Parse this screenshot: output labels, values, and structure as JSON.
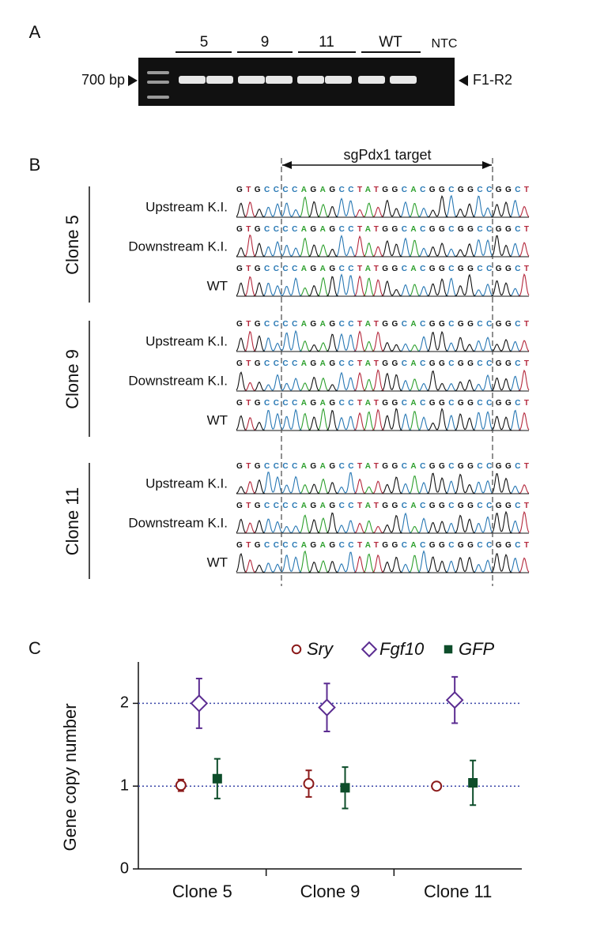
{
  "panel_labels": [
    "A",
    "B",
    "C"
  ],
  "gel": {
    "lane_groups": [
      "5",
      "9",
      "11",
      "WT"
    ],
    "ntc": "NTC",
    "marker": "700 bp",
    "product": "F1-R2"
  },
  "sequencing": {
    "target": "sgPdx1 target",
    "clones": [
      {
        "name": "Clone 5",
        "rows": [
          {
            "label": "Upstream K.I.",
            "sequence": "GTGCCCCAGAGCCTATGGCACGGCGGCCGGCT"
          },
          {
            "label": "Downstream K.I.",
            "sequence": "GTGCCCCAGAGCCTATGGCACGGCGGCCGGCT"
          },
          {
            "label": "WT",
            "sequence": "GTGCCCCAGAGCCTATGGCACGGCGGCCGGCT"
          }
        ]
      },
      {
        "name": "Clone 9",
        "rows": [
          {
            "label": "Upstream K.I.",
            "sequence": "GTGCCCCAGAGCCTATGGCACGGCGGCCGGCT"
          },
          {
            "label": "Downstream K.I.",
            "sequence": "GTGCCCCAGAGCCTATGGCACGGCGGCCGGCT"
          },
          {
            "label": "WT",
            "sequence": "GTGCCCCAGAGCCTATGGCACGGCGGCCGGCT"
          }
        ]
      },
      {
        "name": "Clone 11",
        "rows": [
          {
            "label": "Upstream K.I.",
            "sequence": "GTGCCCCAGAGCCTATGGCACGGCGGCCGGCT"
          },
          {
            "label": "Downstream K.I.",
            "sequence": "GTGCCCCAGAGCCTATGGCACGGCGGCCGGCT"
          },
          {
            "label": "WT",
            "sequence": "GTGCCCCAGAGCCTATGGCACGGCGGCCGGCT"
          }
        ]
      }
    ]
  },
  "chart_data": {
    "type": "dot-errorbar",
    "y_label": "Gene copy number",
    "categories": [
      "Clone 5",
      "Clone 9",
      "Clone 11"
    ],
    "series": [
      {
        "name": "Sry",
        "color": "#8b1a1a",
        "marker": "circle",
        "values": [
          1.01,
          1.03,
          1.0
        ],
        "errors": [
          0.07,
          0.16,
          0.03
        ]
      },
      {
        "name": "Fgf10",
        "color": "#5b2c91",
        "marker": "diamond",
        "values": [
          2.0,
          1.95,
          2.04
        ],
        "errors": [
          0.3,
          0.29,
          0.28
        ]
      },
      {
        "name": "GFP",
        "color": "#0d4d2a",
        "marker": "square",
        "values": [
          1.09,
          0.98,
          1.04
        ],
        "errors": [
          0.24,
          0.25,
          0.27
        ]
      }
    ],
    "ylim": [
      0,
      2.5
    ],
    "yticks": [
      0,
      1,
      2
    ],
    "reference_lines": [
      1,
      2
    ],
    "legend": "top-right"
  }
}
